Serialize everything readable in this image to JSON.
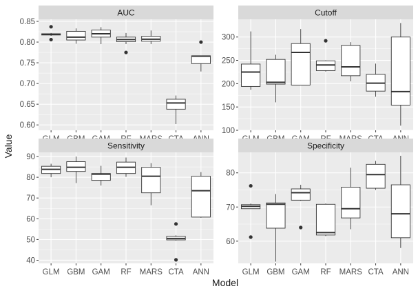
{
  "figure": {
    "xlabel": "Model",
    "ylabel": "Value"
  },
  "colors": {
    "panel_bg": "#EBEBEB",
    "strip_bg": "#D9D9D9",
    "grid": "#FFFFFF",
    "box_fill": "#FFFFFF",
    "box_line": "#333333",
    "text": "#1A1A1A",
    "tick_text": "#4D4D4D"
  },
  "chart_data": [
    {
      "type": "box",
      "title": "AUC",
      "categories": [
        "GLM",
        "GBM",
        "GAM",
        "RF",
        "MARS",
        "CTA",
        "ANN"
      ],
      "ylim": [
        0.587,
        0.855
      ],
      "yticks": [
        0.6,
        0.65,
        0.7,
        0.75,
        0.8,
        0.85
      ],
      "ytick_labels": [
        "0.60",
        "0.65",
        "0.70",
        "0.75",
        "0.80",
        "0.85"
      ],
      "boxes": [
        {
          "whisker_low": 0.815,
          "q1": 0.817,
          "median": 0.819,
          "q3": 0.82,
          "whisker_high": 0.822,
          "outliers": [
            0.806,
            0.837
          ]
        },
        {
          "whisker_low": 0.796,
          "q1": 0.805,
          "median": 0.812,
          "q3": 0.826,
          "whisker_high": 0.833,
          "outliers": []
        },
        {
          "whisker_low": 0.795,
          "q1": 0.812,
          "median": 0.82,
          "q3": 0.829,
          "whisker_high": 0.836,
          "outliers": []
        },
        {
          "whisker_low": 0.795,
          "q1": 0.801,
          "median": 0.806,
          "q3": 0.812,
          "whisker_high": 0.822,
          "outliers": [
            0.775
          ]
        },
        {
          "whisker_low": 0.795,
          "q1": 0.802,
          "median": 0.807,
          "q3": 0.814,
          "whisker_high": 0.828,
          "outliers": []
        },
        {
          "whisker_low": 0.602,
          "q1": 0.638,
          "median": 0.653,
          "q3": 0.662,
          "whisker_high": 0.671,
          "outliers": []
        },
        {
          "whisker_low": 0.729,
          "q1": 0.748,
          "median": 0.766,
          "q3": 0.767,
          "whisker_high": 0.767,
          "outliers": [
            0.8
          ]
        }
      ]
    },
    {
      "type": "box",
      "title": "Cutoff",
      "categories": [
        "GLM",
        "GBM",
        "GAM",
        "RF",
        "MARS",
        "CTA",
        "ANN"
      ],
      "ylim": [
        100,
        338
      ],
      "yticks": [
        100,
        150,
        200,
        250,
        300
      ],
      "ytick_labels": [
        "100",
        "150",
        "200",
        "250",
        "300"
      ],
      "boxes": [
        {
          "whisker_low": 187,
          "q1": 194,
          "median": 225,
          "q3": 242,
          "whisker_high": 312,
          "outliers": []
        },
        {
          "whisker_low": 160,
          "q1": 199,
          "median": 203,
          "q3": 252,
          "whisker_high": 262,
          "outliers": []
        },
        {
          "whisker_low": 197,
          "q1": 197,
          "median": 267,
          "q3": 286,
          "whisker_high": 317,
          "outliers": []
        },
        {
          "whisker_low": 226,
          "q1": 228,
          "median": 240,
          "q3": 249,
          "whisker_high": 250,
          "outliers": [
            292
          ]
        },
        {
          "whisker_low": 205,
          "q1": 217,
          "median": 236,
          "q3": 282,
          "whisker_high": 289,
          "outliers": []
        },
        {
          "whisker_low": 172,
          "q1": 184,
          "median": 201,
          "q3": 220,
          "whisker_high": 243,
          "outliers": []
        },
        {
          "whisker_low": 110,
          "q1": 154,
          "median": 183,
          "q3": 300,
          "whisker_high": 330,
          "outliers": []
        }
      ]
    },
    {
      "type": "box",
      "title": "Sensitivity",
      "categories": [
        "GLM",
        "GBM",
        "GAM",
        "RF",
        "MARS",
        "CTA",
        "ANN"
      ],
      "ylim": [
        38.5,
        92
      ],
      "yticks": [
        40,
        50,
        60,
        70,
        80,
        90
      ],
      "ytick_labels": [
        "40",
        "50",
        "60",
        "70",
        "80",
        "90"
      ],
      "boxes": [
        {
          "whisker_low": 80,
          "q1": 81.8,
          "median": 83.8,
          "q3": 85.3,
          "whisker_high": 86.5,
          "outliers": []
        },
        {
          "whisker_low": 77.2,
          "q1": 82.8,
          "median": 84.8,
          "q3": 87.5,
          "whisker_high": 90,
          "outliers": []
        },
        {
          "whisker_low": 76,
          "q1": 78.5,
          "median": 81.5,
          "q3": 81.8,
          "whisker_high": 85.5,
          "outliers": []
        },
        {
          "whisker_low": 80.2,
          "q1": 81.8,
          "median": 84.8,
          "q3": 87.3,
          "whisker_high": 89.5,
          "outliers": []
        },
        {
          "whisker_low": 66.5,
          "q1": 72.5,
          "median": 80.5,
          "q3": 84.8,
          "whisker_high": 86.8,
          "outliers": []
        },
        {
          "whisker_low": 49.5,
          "q1": 49.8,
          "median": 50.5,
          "q3": 51.5,
          "whisker_high": 52,
          "outliers": [
            57.5,
            40.2
          ]
        },
        {
          "whisker_low": 60.5,
          "q1": 60.8,
          "median": 73.5,
          "q3": 80.5,
          "whisker_high": 82.5,
          "outliers": []
        }
      ]
    },
    {
      "type": "box",
      "title": "Specificity",
      "categories": [
        "GLM",
        "GBM",
        "GAM",
        "RF",
        "MARS",
        "CTA",
        "ANN"
      ],
      "ylim": [
        53.5,
        86
      ],
      "yticks": [
        60,
        70,
        80
      ],
      "ytick_labels": [
        "60",
        "70",
        "80"
      ],
      "boxes": [
        {
          "whisker_low": 69.5,
          "q1": 69.5,
          "median": 70.2,
          "q3": 70.7,
          "whisker_high": 71,
          "outliers": [
            76.2,
            61.2
          ]
        },
        {
          "whisker_low": 54,
          "q1": 63.8,
          "median": 70.8,
          "q3": 71.2,
          "whisker_high": 73.8,
          "outliers": []
        },
        {
          "whisker_low": 71.8,
          "q1": 72,
          "median": 74.2,
          "q3": 75.3,
          "whisker_high": 76.5,
          "outliers": [
            64
          ]
        },
        {
          "whisker_low": 61.5,
          "q1": 61.8,
          "median": 62.5,
          "q3": 70.8,
          "whisker_high": 71,
          "outliers": []
        },
        {
          "whisker_low": 63.5,
          "q1": 66.8,
          "median": 69.5,
          "q3": 75.8,
          "whisker_high": 81.5,
          "outliers": []
        },
        {
          "whisker_low": 75,
          "q1": 75.5,
          "median": 79.5,
          "q3": 82.5,
          "whisker_high": 83.5,
          "outliers": []
        },
        {
          "whisker_low": 58,
          "q1": 61,
          "median": 68,
          "q3": 76.5,
          "whisker_high": 85,
          "outliers": []
        }
      ]
    }
  ]
}
